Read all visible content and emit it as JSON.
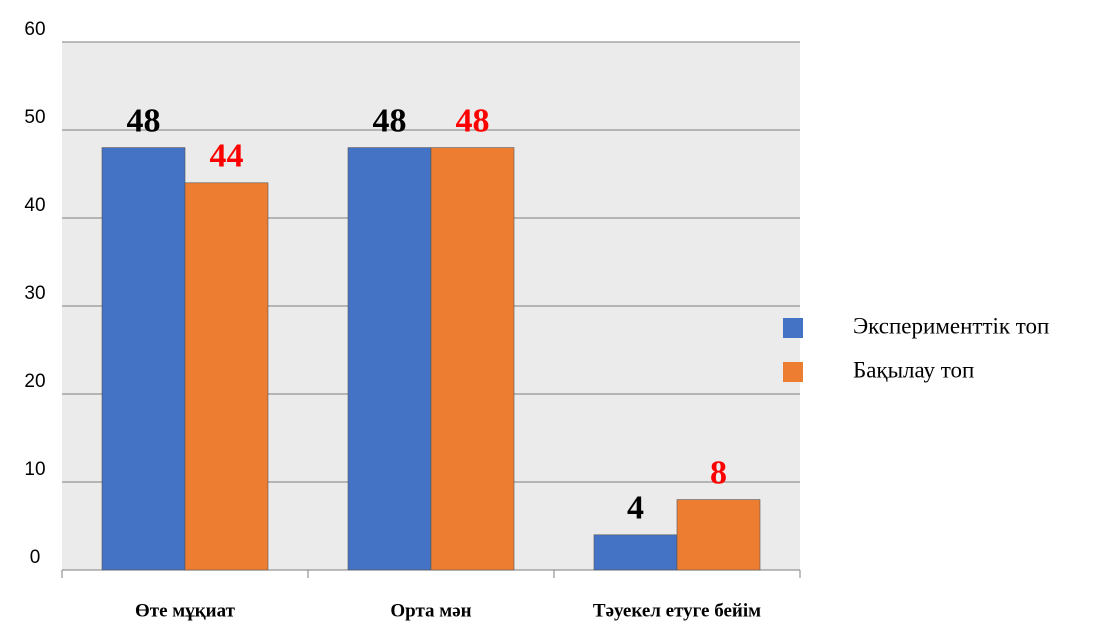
{
  "chart_data": {
    "type": "bar",
    "categories": [
      "Өте мұқиат",
      "Орта мән",
      "Тәуекел етуге бейім"
    ],
    "series": [
      {
        "name": "Эксперименттік топ",
        "color": "#4472c4",
        "label_color": "#000000",
        "values": [
          48,
          48,
          4
        ]
      },
      {
        "name": "Бақылау топ",
        "color": "#ed7d31",
        "label_color": "#ff0000",
        "values": [
          44,
          48,
          8
        ]
      }
    ],
    "ylim": [
      0,
      60
    ],
    "yticks": [
      0,
      10,
      20,
      30,
      40,
      50,
      60
    ],
    "grid": true,
    "legend": "right"
  }
}
